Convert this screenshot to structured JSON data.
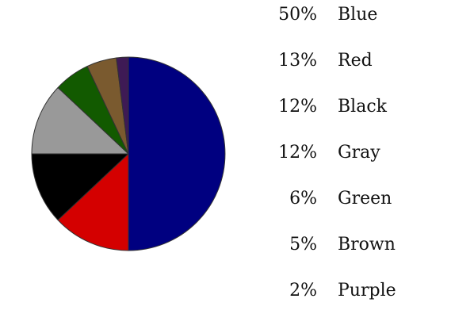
{
  "chart_data": {
    "type": "pie",
    "title": "",
    "start_angle_deg": 0,
    "direction": "clockwise",
    "slices": [
      {
        "label": "Blue",
        "percent_label": "50%",
        "value": 50,
        "color": "#000080"
      },
      {
        "label": "Red",
        "percent_label": "13%",
        "value": 13,
        "color": "#d40000"
      },
      {
        "label": "Black",
        "percent_label": "12%",
        "value": 12,
        "color": "#000000"
      },
      {
        "label": "Gray",
        "percent_label": "12%",
        "value": 12,
        "color": "#999999"
      },
      {
        "label": "Green",
        "percent_label": "6%",
        "value": 6,
        "color": "#125a00"
      },
      {
        "label": "Brown",
        "percent_label": "5%",
        "value": 5,
        "color": "#7a5a2f"
      },
      {
        "label": "Purple",
        "percent_label": "2%",
        "value": 2,
        "color": "#3e1a55"
      }
    ],
    "legend_position": "right",
    "stroke_color": "#333333"
  }
}
